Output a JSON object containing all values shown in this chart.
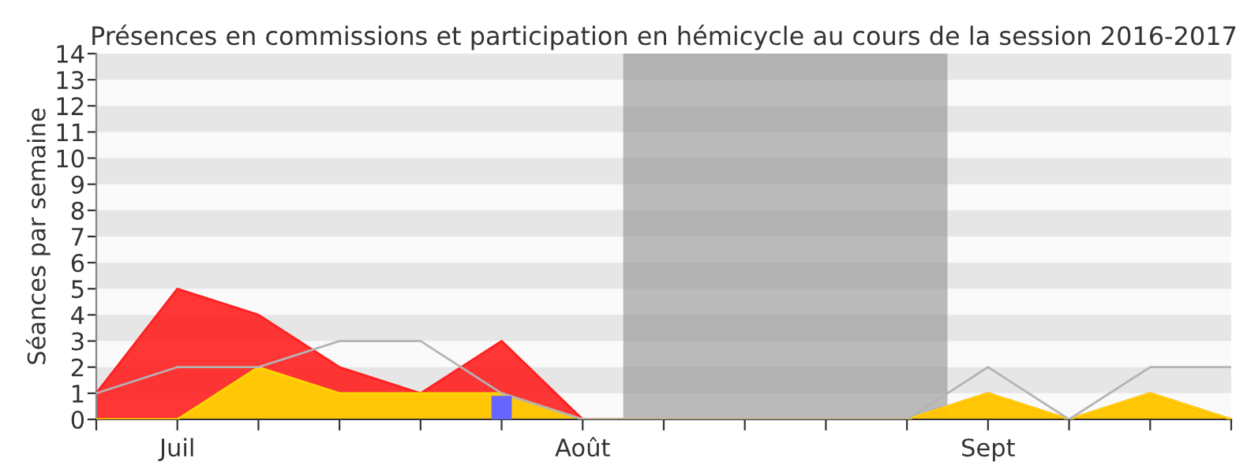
{
  "chart_data": {
    "type": "area",
    "title": "Présences en commissions et participation en hémicycle au cours de la session 2016-2017",
    "ylabel": "Séances par semaine",
    "categories": [
      null,
      "Juil",
      null,
      null,
      null,
      null,
      "Août",
      null,
      null,
      null,
      null,
      "Sept",
      null,
      null,
      null
    ],
    "series": [
      {
        "color": "#ff2020",
        "values": [
          1,
          5,
          4,
          2,
          1,
          3,
          0,
          0,
          0,
          0,
          0,
          1,
          0,
          1,
          0
        ]
      },
      {
        "type": "area",
        "color": "#ffd700",
        "values": [
          0,
          0,
          2,
          1,
          1,
          1,
          0,
          0,
          0,
          0,
          0,
          1,
          0,
          1,
          0
        ]
      },
      {
        "type": "line",
        "color": "#b4b4b4",
        "values": [
          1,
          2,
          2,
          3,
          3,
          1,
          0,
          0,
          0,
          0,
          0,
          2,
          0,
          2,
          2
        ]
      },
      {
        "type": "bar",
        "color": "#6666ff",
        "values": [
          null,
          null,
          null,
          null,
          null,
          0.9,
          null,
          null,
          null,
          null,
          null,
          null,
          null,
          null,
          null
        ]
      }
    ],
    "ylim": [
      0,
      14
    ],
    "yticks": [
      0,
      1,
      2,
      3,
      4,
      5,
      6,
      7,
      8,
      9,
      10,
      11,
      12,
      13,
      14
    ],
    "legend": false
  }
}
